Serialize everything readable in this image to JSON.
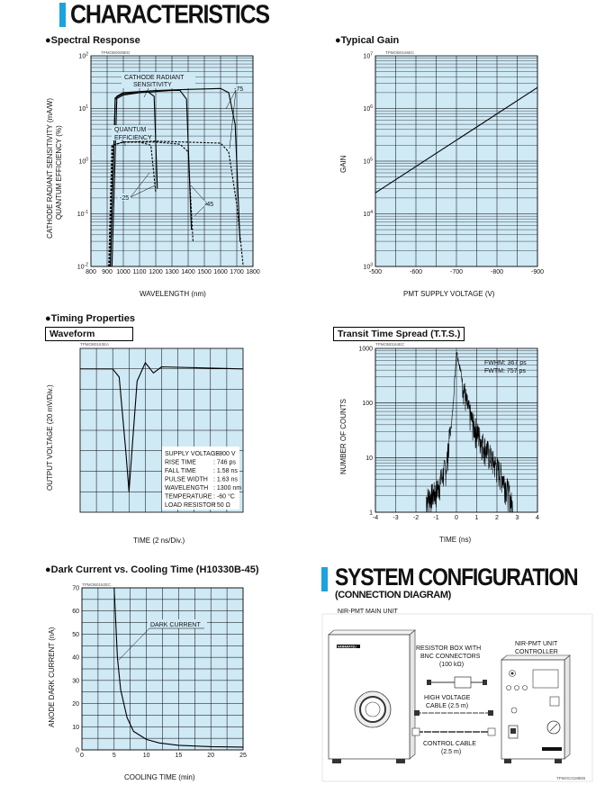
{
  "header": {
    "title": "CHARACTERISTICS"
  },
  "spectral": {
    "heading": "●Spectral Response",
    "code": "TPMOB0008ED",
    "ylabel1": "CATHODE RADIANT SENSITIVITY (mA/W)",
    "ylabel2": "QUANTUM EFFICIENCY (%)",
    "xlabel": "WAVELENGTH (nm)",
    "label_cathode1": "CATHODE RADIANT",
    "label_cathode2": "SENSITIVITY",
    "label_qe1": "QUANTUM",
    "label_qe2": "EFFICIENCY",
    "label_m75": "-75",
    "label_m25": "-25",
    "label_m45": "-45"
  },
  "gain": {
    "heading": "●Typical Gain",
    "code": "TPMOB0165EC",
    "ylabel": "GAIN",
    "xlabel": "PMT SUPPLY VOLTAGE (V)"
  },
  "timing": {
    "heading": "●Timing Properties"
  },
  "waveform": {
    "title": "Waveform",
    "code": "TPMOB0163EA",
    "ylabel": "OUTPUT VOLTAGE (20 mV/Div.)",
    "xlabel": "TIME (2 ns/Div.)",
    "specs": [
      {
        "k": "SUPPLY VOLTAGE",
        "v": ": -800 V"
      },
      {
        "k": "RISE TIME",
        "v": ": 746 ps"
      },
      {
        "k": "FALL TIME",
        "v": ": 1.58 ns"
      },
      {
        "k": "PULSE WIDTH",
        "v": ": 1.63 ns"
      },
      {
        "k": "WAVELENGTH",
        "v": ": 1300 nm"
      },
      {
        "k": "TEMPERATURE",
        "v": ": -60 °C"
      },
      {
        "k": "LOAD RESISTOR",
        "v": ": 50 Ω"
      }
    ]
  },
  "tts": {
    "title": "Transit Time Spread (T.T.S.)",
    "code": "TPMOB0164EC",
    "ylabel": "NUMBER OF COUNTS",
    "xlabel": "TIME (ns)",
    "fwhm": "FWHM: 367 ps",
    "fwtm": "FWTM: 757 ps"
  },
  "dark": {
    "heading": "●Dark Current vs. Cooling Time (H10330B-45)",
    "code": "TPMOB0162EC",
    "ylabel": "ANODE DARK CURRENT (nA)",
    "xlabel": "COOLING TIME (min)",
    "curve_label": "DARK CURRENT"
  },
  "system": {
    "title": "SYSTEM CONFIGURATION",
    "subtitle": "(CONNECTION DIAGRAM)",
    "main_unit": "NIR-PMT MAIN UNIT",
    "brand": "HAMAMATSU",
    "resistor1": "RESISTOR BOX WITH",
    "resistor2": "BNC CONNECTORS",
    "resistor3": "(100 kΩ)",
    "hv1": "HIGH VOLTAGE",
    "hv2": "CABLE (2.5 m)",
    "cc1": "CONTROL CABLE",
    "cc2": "(2.5 m)",
    "ctrl1": "NIR-PMT UNIT",
    "ctrl2": "CONTROLLER",
    "code": "TPMOC0189EB"
  },
  "chart_data": [
    {
      "type": "line",
      "id": "spectral-response",
      "xlabel": "WAVELENGTH (nm)",
      "ylabel": "CATHODE RADIANT SENSITIVITY (mA/W) / QUANTUM EFFICIENCY (%)",
      "xlim": [
        800,
        1800
      ],
      "ylim": [
        0.01,
        100
      ],
      "yscale": "log",
      "x_ticks": [
        "800",
        "900",
        "1000",
        "1100",
        "1200",
        "1300",
        "1400",
        "1500",
        "1600",
        "1700",
        "1800"
      ],
      "y_ticks": [
        "10-2",
        "10-1",
        "100",
        "101",
        "102"
      ],
      "grid": true,
      "series": [
        {
          "name": "-25",
          "style": "solid",
          "x": [
            920,
            950,
            1000,
            1100,
            1150,
            1190,
            1210
          ],
          "y": [
            0.01,
            15,
            18,
            20,
            21,
            17,
            0.3
          ]
        },
        {
          "name": "-45",
          "style": "solid",
          "x": [
            920,
            950,
            1000,
            1200,
            1300,
            1350,
            1390,
            1420
          ],
          "y": [
            0.01,
            16,
            19,
            21,
            22,
            22,
            15,
            0.05
          ]
        },
        {
          "name": "-75",
          "style": "solid",
          "x": [
            930,
            960,
            1000,
            1200,
            1400,
            1600,
            1650,
            1690,
            1720
          ],
          "y": [
            0.01,
            17,
            20,
            22,
            23,
            24,
            20,
            5,
            0.03
          ]
        },
        {
          "name": "-25",
          "style": "dashed",
          "x": [
            910,
            930,
            1000,
            1100,
            1170,
            1200
          ],
          "y": [
            0.01,
            2,
            2.3,
            2.3,
            2.0,
            0.25
          ]
        },
        {
          "name": "-45",
          "style": "dashed",
          "x": [
            910,
            930,
            1000,
            1200,
            1350,
            1400,
            1430
          ],
          "y": [
            0.01,
            2,
            2.3,
            2.3,
            2.1,
            1.5,
            0.03
          ]
        },
        {
          "name": "-75",
          "style": "dashed",
          "x": [
            915,
            935,
            1000,
            1200,
            1600,
            1650,
            1700,
            1740
          ],
          "y": [
            0.01,
            2,
            2.3,
            2.4,
            2.2,
            1.5,
            0.15,
            0.01
          ]
        }
      ]
    },
    {
      "type": "line",
      "id": "typical-gain",
      "xlabel": "PMT SUPPLY VOLTAGE (V)",
      "ylabel": "GAIN",
      "xlim": [
        -500,
        -900
      ],
      "ylim": [
        1000,
        10000000
      ],
      "yscale": "log",
      "x_ticks": [
        "-500",
        "-600",
        "-700",
        "-800",
        "-900"
      ],
      "y_ticks": [
        "103",
        "104",
        "105",
        "106",
        "107"
      ],
      "grid": true,
      "series": [
        {
          "x": [
            -500,
            -900
          ],
          "y": [
            25000,
            2500000
          ]
        }
      ]
    },
    {
      "type": "line",
      "id": "waveform",
      "xlabel": "TIME (2 ns/Div.)",
      "ylabel": "OUTPUT VOLTAGE (20 mV/Div.)",
      "divisions_x": 10,
      "divisions_y": 8,
      "grid": true,
      "series": [
        {
          "x": [
            0,
            2,
            2.4,
            2.8,
            3.0,
            3.2,
            3.5,
            4.0,
            4.5,
            5.0,
            10
          ],
          "y": [
            7,
            7,
            6.6,
            3.0,
            1.0,
            3.2,
            6.4,
            7.3,
            6.8,
            7.1,
            7.0
          ]
        }
      ]
    },
    {
      "type": "line",
      "id": "transit-time-spread",
      "xlabel": "TIME (ns)",
      "ylabel": "NUMBER OF COUNTS",
      "xlim": [
        -4,
        4
      ],
      "ylim": [
        1,
        1000
      ],
      "yscale": "log",
      "x_ticks": [
        "-4",
        "-3",
        "-2",
        "-1",
        "0",
        "1",
        "2",
        "3",
        "4"
      ],
      "y_ticks": [
        "1",
        "10",
        "100",
        "1000"
      ],
      "grid": true,
      "annotations": [
        "FWHM: 367 ps",
        "FWTM: 757 ps"
      ],
      "series": [
        {
          "x": [
            -1.5,
            -1.0,
            -0.5,
            -0.2,
            0,
            0.2,
            0.5,
            0.8,
            1.2,
            1.8,
            2.3,
            2.6,
            2.8
          ],
          "y": [
            1.5,
            2,
            6,
            60,
            900,
            400,
            90,
            40,
            20,
            8,
            4,
            2,
            1
          ]
        }
      ]
    },
    {
      "type": "line",
      "id": "dark-current",
      "xlabel": "COOLING TIME (min)",
      "ylabel": "ANODE DARK CURRENT (nA)",
      "xlim": [
        0,
        25
      ],
      "ylim": [
        0,
        70
      ],
      "x_ticks": [
        "0",
        "5",
        "10",
        "15",
        "20",
        "25"
      ],
      "y_ticks": [
        "0",
        "10",
        "20",
        "30",
        "40",
        "50",
        "60",
        "70"
      ],
      "grid": true,
      "series": [
        {
          "name": "DARK CURRENT",
          "x": [
            5,
            5.5,
            6,
            7,
            8,
            10,
            12,
            15,
            20,
            25
          ],
          "y": [
            70,
            40,
            26,
            14,
            8,
            4.5,
            3,
            2,
            1.4,
            1.2
          ]
        }
      ]
    }
  ]
}
